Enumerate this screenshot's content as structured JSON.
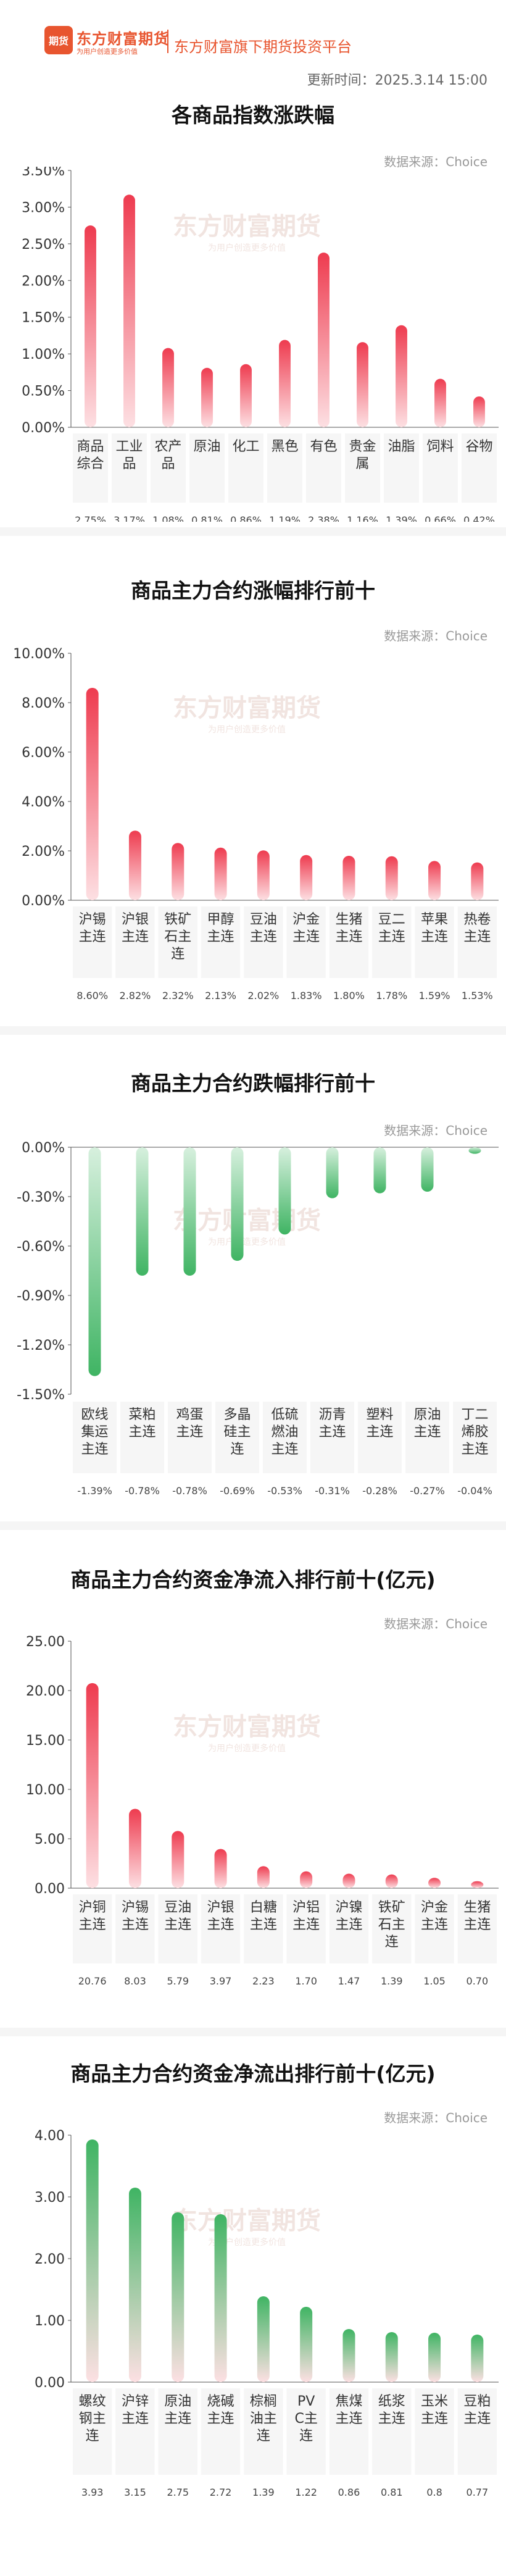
{
  "header": {
    "logo_mark": "期货",
    "logo_name": "东方财富期货",
    "logo_slogan": "为用户创造更多价值",
    "platform": "东方财富旗下期货投资平台",
    "update_time": "更新时间：2025.3.14 15:00",
    "brand_color": "#e8552f"
  },
  "source_text": "数据来源：Choice",
  "watermark": {
    "main": "东方财富期货",
    "sub": "为用户创造更多价值"
  },
  "charts": [
    {
      "title": "各商品指数涨跌幅"
    },
    {
      "title": "商品主力合约涨幅排行前十"
    },
    {
      "title": "商品主力合约跌幅排行前十"
    },
    {
      "title": "商品主力合约资金净流入排行前十(亿元)"
    },
    {
      "title": "商品主力合约资金净流出排行前十(亿元)"
    }
  ],
  "chart_data": [
    {
      "type": "bar",
      "title": "各商品指数涨跌幅",
      "categories": [
        "商品综合",
        "工业品",
        "农产品",
        "原油",
        "化工",
        "黑色",
        "有色",
        "贵金属",
        "油脂",
        "饲料",
        "谷物"
      ],
      "values": [
        2.75,
        3.17,
        1.08,
        0.81,
        0.86,
        1.19,
        2.38,
        1.16,
        1.39,
        0.66,
        0.42
      ],
      "value_labels": [
        "2.75%",
        "3.17%",
        "1.08%",
        "0.81%",
        "0.86%",
        "1.19%",
        "2.38%",
        "1.16%",
        "1.39%",
        "0.66%",
        "0.42%"
      ],
      "yticks": [
        "0.00%",
        "0.50%",
        "1.00%",
        "1.50%",
        "2.00%",
        "2.50%",
        "3.00%",
        "3.50%"
      ],
      "ylim": [
        0,
        3.5
      ],
      "color": "#ee3b4f",
      "grid": false
    },
    {
      "type": "bar",
      "title": "商品主力合约涨幅排行前十",
      "categories": [
        "沪锡主连",
        "沪银主连",
        "铁矿石主连",
        "甲醇主连",
        "豆油主连",
        "沪金主连",
        "生猪主连",
        "豆二主连",
        "苹果主连",
        "热卷主连"
      ],
      "values": [
        8.6,
        2.82,
        2.32,
        2.13,
        2.02,
        1.83,
        1.8,
        1.78,
        1.59,
        1.53
      ],
      "value_labels": [
        "8.60%",
        "2.82%",
        "2.32%",
        "2.13%",
        "2.02%",
        "1.83%",
        "1.80%",
        "1.78%",
        "1.59%",
        "1.53%"
      ],
      "yticks": [
        "0.00%",
        "2.00%",
        "4.00%",
        "6.00%",
        "8.00%",
        "10.00%"
      ],
      "ylim": [
        0,
        10
      ],
      "color": "#ee3b4f",
      "grid": false
    },
    {
      "type": "bar",
      "title": "商品主力合约跌幅排行前十",
      "categories": [
        "欧线集运主连",
        "菜粕主连",
        "鸡蛋主连",
        "多晶硅主连",
        "低硫燃油主连",
        "沥青主连",
        "塑料主连",
        "原油主连",
        "丁二烯胶主连"
      ],
      "values": [
        -1.39,
        -0.78,
        -0.78,
        -0.69,
        -0.53,
        -0.31,
        -0.28,
        -0.27,
        -0.04
      ],
      "value_labels": [
        "-1.39%",
        "-0.78%",
        "-0.78%",
        "-0.69%",
        "-0.53%",
        "-0.31%",
        "-0.28%",
        "-0.27%",
        "-0.04%"
      ],
      "yticks": [
        "0.00%",
        "-0.30%",
        "-0.60%",
        "-0.90%",
        "-1.20%",
        "-1.50%"
      ],
      "ylim": [
        -1.5,
        0
      ],
      "color": "#3fb463",
      "grid": false
    },
    {
      "type": "bar",
      "title": "商品主力合约资金净流入排行前十(亿元)",
      "categories": [
        "沪铜主连",
        "沪锡主连",
        "豆油主连",
        "沪银主连",
        "白糖主连",
        "沪铝主连",
        "沪镍主连",
        "铁矿石主连",
        "沪金主连",
        "生猪主连"
      ],
      "values": [
        20.76,
        8.03,
        5.79,
        3.97,
        2.23,
        1.7,
        1.47,
        1.39,
        1.05,
        0.7
      ],
      "value_labels": [
        "20.76",
        "8.03",
        "5.79",
        "3.97",
        "2.23",
        "1.70",
        "1.47",
        "1.39",
        "1.05",
        "0.70"
      ],
      "yticks": [
        "0.00",
        "5.00",
        "10.00",
        "15.00",
        "20.00",
        "25.00"
      ],
      "ylim": [
        0,
        25
      ],
      "color": "#ee3b4f",
      "grid": false
    },
    {
      "type": "bar",
      "title": "商品主力合约资金净流出排行前十(亿元)",
      "categories": [
        "螺纹钢主连",
        "沪锌主连",
        "原油主连",
        "烧碱主连",
        "棕榈油主连",
        "PVC主连",
        "焦煤主连",
        "纸浆主连",
        "玉米主连",
        "豆粕主连"
      ],
      "values": [
        3.93,
        3.15,
        2.75,
        2.72,
        1.39,
        1.22,
        0.86,
        0.81,
        0.8,
        0.77
      ],
      "value_labels": [
        "3.93",
        "3.15",
        "2.75",
        "2.72",
        "1.39",
        "1.22",
        "0.86",
        "0.81",
        "0.8",
        "0.77"
      ],
      "yticks": [
        "0.00",
        "1.00",
        "2.00",
        "3.00",
        "4.00"
      ],
      "ylim": [
        0,
        4
      ],
      "color": "#3fb463",
      "grid": false
    }
  ]
}
